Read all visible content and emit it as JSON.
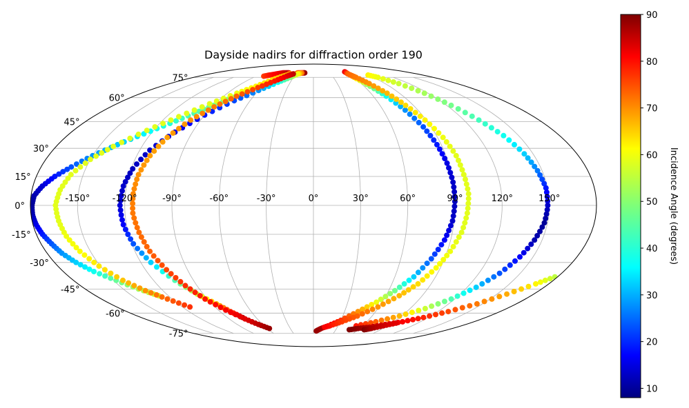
{
  "chart_data": {
    "type": "scatter",
    "projection": "mollweide",
    "title": "Dayside nadirs for diffraction order 190",
    "xlabel": "",
    "ylabel": "",
    "grid": true,
    "lon_ticks": [
      "-150°",
      "-120°",
      "-90°",
      "-60°",
      "-30°",
      "0°",
      "30°",
      "60°",
      "90°",
      "120°",
      "150°"
    ],
    "lat_ticks": [
      "75°",
      "60°",
      "45°",
      "30°",
      "15°",
      "0°",
      "-15°",
      "-30°",
      "-45°",
      "-60°",
      "-75°"
    ],
    "xlim": [
      -180,
      180
    ],
    "ylim": [
      -90,
      90
    ],
    "colorbar": {
      "label": "Incidence Angle (degrees)",
      "ticks": [
        "90",
        "80",
        "70",
        "60",
        "50",
        "40",
        "30",
        "20",
        "10"
      ],
      "range": [
        8,
        90
      ],
      "colormap": "jet"
    },
    "series": [
      {
        "points": [
          [
            -29,
            79,
            70
          ],
          [
            -24,
            79,
            75
          ],
          [
            -19,
            79,
            82
          ],
          [
            -16,
            79,
            88
          ],
          [
            -35,
            78,
            68
          ],
          [
            -40,
            76,
            65
          ],
          [
            -47,
            74,
            62
          ],
          [
            -55,
            71,
            58
          ],
          [
            -63,
            68,
            55
          ],
          [
            -72,
            64,
            52
          ],
          [
            -80,
            60,
            50
          ],
          [
            -90,
            55,
            48
          ],
          [
            -100,
            50,
            45
          ],
          [
            -112,
            44,
            42
          ],
          [
            -125,
            38,
            38
          ],
          [
            -138,
            32,
            34
          ],
          [
            -150,
            26,
            30
          ],
          [
            -160,
            20,
            25
          ],
          [
            -168,
            15,
            20
          ],
          [
            -174,
            10,
            15
          ],
          [
            -178,
            5,
            12
          ],
          [
            -179,
            0,
            10
          ],
          [
            -179,
            -5,
            12
          ],
          [
            -178,
            -10,
            16
          ],
          [
            -176,
            -15,
            20
          ],
          [
            -173,
            -20,
            25
          ],
          [
            -170,
            -25,
            30
          ],
          [
            -165,
            -30,
            35
          ],
          [
            -158,
            -35,
            40
          ],
          [
            -148,
            -40,
            47
          ],
          [
            -138,
            -45,
            52
          ],
          [
            -128,
            -49,
            56
          ]
        ]
      },
      {
        "points": [
          [
            -78,
            76,
            75
          ],
          [
            -72,
            77,
            78
          ],
          [
            -64,
            78,
            80
          ],
          [
            -56,
            79,
            82
          ],
          [
            -50,
            79,
            84
          ],
          [
            -45,
            79,
            86
          ],
          [
            -40,
            78,
            68
          ],
          [
            -48,
            76,
            65
          ],
          [
            -57,
            73,
            62
          ],
          [
            -68,
            68,
            60
          ],
          [
            -80,
            63,
            58
          ],
          [
            -95,
            56,
            57
          ],
          [
            -110,
            48,
            57
          ],
          [
            -125,
            40,
            57
          ],
          [
            -140,
            31,
            57
          ],
          [
            -150,
            24,
            57
          ],
          [
            -158,
            16,
            57
          ],
          [
            -162,
            8,
            57
          ],
          [
            -164,
            0,
            57
          ],
          [
            -163,
            -8,
            57
          ],
          [
            -161,
            -16,
            58
          ],
          [
            -157,
            -24,
            59
          ],
          [
            -151,
            -32,
            61
          ],
          [
            -143,
            -40,
            64
          ],
          [
            -134,
            -46,
            68
          ],
          [
            -124,
            -51,
            72
          ],
          [
            -113,
            -56,
            76
          ]
        ]
      },
      {
        "points": [
          [
            -21,
            79,
            72
          ],
          [
            -27,
            78,
            60
          ],
          [
            -35,
            75,
            50
          ],
          [
            -46,
            71,
            40
          ],
          [
            -60,
            65,
            30
          ],
          [
            -75,
            58,
            24
          ],
          [
            -90,
            49,
            20
          ],
          [
            -103,
            39,
            16
          ],
          [
            -113,
            29,
            14
          ],
          [
            -119,
            19,
            13
          ],
          [
            -122,
            10,
            14
          ],
          [
            -123,
            0,
            15
          ],
          [
            -122,
            -10,
            18
          ],
          [
            -119,
            -20,
            25
          ],
          [
            -113,
            -30,
            35
          ],
          [
            -104,
            -40,
            45
          ],
          [
            -95,
            -48,
            55
          ],
          [
            -86,
            -54,
            65
          ],
          [
            -80,
            -59,
            75
          ],
          [
            -74,
            -63,
            85
          ]
        ]
      },
      {
        "points": [
          [
            -35,
            78,
            85
          ],
          [
            -42,
            76,
            82
          ],
          [
            -52,
            72,
            78
          ],
          [
            -64,
            67,
            75
          ],
          [
            -77,
            61,
            72
          ],
          [
            -88,
            54,
            70
          ],
          [
            -98,
            46,
            68
          ],
          [
            -106,
            36,
            67
          ],
          [
            -111,
            26,
            67
          ],
          [
            -114,
            16,
            68
          ],
          [
            -115,
            6,
            69
          ],
          [
            -115,
            -4,
            70
          ],
          [
            -113,
            -14,
            71
          ],
          [
            -110,
            -24,
            72
          ],
          [
            -105,
            -34,
            74
          ],
          [
            -99,
            -43,
            76
          ],
          [
            -92,
            -51,
            78
          ],
          [
            -83,
            -58,
            80
          ],
          [
            -73,
            -64,
            82
          ],
          [
            -65,
            -68,
            85
          ],
          [
            -57,
            -71,
            88
          ]
        ]
      },
      {
        "points": [
          [
            61,
            80,
            82
          ],
          [
            60,
            78,
            72
          ],
          [
            62,
            74,
            60
          ],
          [
            67,
            68,
            50
          ],
          [
            73,
            61,
            40
          ],
          [
            79,
            52,
            30
          ],
          [
            84,
            42,
            25
          ],
          [
            87,
            32,
            20
          ],
          [
            89,
            22,
            16
          ],
          [
            90,
            12,
            14
          ],
          [
            90,
            2,
            13
          ],
          [
            89,
            -8,
            14
          ],
          [
            86,
            -18,
            18
          ],
          [
            81,
            -28,
            25
          ],
          [
            74,
            -38,
            35
          ],
          [
            65,
            -46,
            48
          ],
          [
            55,
            -53,
            58
          ],
          [
            43,
            -59,
            68
          ],
          [
            30,
            -65,
            76
          ],
          [
            18,
            -69,
            82
          ],
          [
            10,
            -71,
            86
          ],
          [
            4,
            -73,
            88
          ]
        ]
      },
      {
        "points": [
          [
            60,
            78,
            72
          ],
          [
            64,
            75,
            70
          ],
          [
            70,
            70,
            68
          ],
          [
            77,
            63,
            65
          ],
          [
            83,
            55,
            62
          ],
          [
            89,
            46,
            60
          ],
          [
            94,
            36,
            58
          ],
          [
            97,
            26,
            57
          ],
          [
            98,
            16,
            57
          ],
          [
            99,
            6,
            57
          ],
          [
            98,
            -4,
            57
          ],
          [
            96,
            -14,
            57
          ],
          [
            92,
            -24,
            58
          ],
          [
            87,
            -33,
            59
          ],
          [
            80,
            -42,
            62
          ],
          [
            71,
            -49,
            65
          ],
          [
            59,
            -56,
            68
          ],
          [
            45,
            -62,
            72
          ],
          [
            32,
            -66,
            75
          ],
          [
            20,
            -69,
            78
          ],
          [
            14,
            -70,
            80
          ]
        ]
      },
      {
        "points": [
          [
            90,
            77,
            60
          ],
          [
            97,
            75,
            58
          ],
          [
            107,
            70,
            55
          ],
          [
            116,
            63,
            52
          ],
          [
            124,
            55,
            48
          ],
          [
            132,
            46,
            44
          ],
          [
            139,
            37,
            40
          ],
          [
            144,
            27,
            35
          ],
          [
            147,
            18,
            28
          ],
          [
            149,
            9,
            20
          ],
          [
            149,
            0,
            14
          ],
          [
            148,
            -9,
            10
          ],
          [
            145,
            -18,
            12
          ],
          [
            141,
            -27,
            18
          ],
          [
            135,
            -36,
            25
          ],
          [
            127,
            -44,
            35
          ],
          [
            117,
            -51,
            45
          ],
          [
            104,
            -57,
            55
          ],
          [
            88,
            -62,
            65
          ],
          [
            70,
            -66,
            72
          ],
          [
            52,
            -69,
            78
          ]
        ]
      },
      {
        "points": [
          [
            178,
            -38,
            54
          ],
          [
            170,
            -42,
            60
          ],
          [
            158,
            -48,
            66
          ],
          [
            145,
            -54,
            70
          ],
          [
            130,
            -59,
            74
          ],
          [
            115,
            -63,
            77
          ],
          [
            100,
            -66,
            80
          ],
          [
            85,
            -68,
            82
          ],
          [
            70,
            -70,
            85
          ],
          [
            58,
            -71,
            88
          ],
          [
            48,
            -72,
            90
          ]
        ]
      },
      {
        "points": [
          [
            68,
            -72,
            90
          ],
          [
            75,
            -71,
            87
          ],
          [
            85,
            -69,
            84
          ],
          [
            95,
            -67,
            82
          ]
        ]
      }
    ]
  }
}
